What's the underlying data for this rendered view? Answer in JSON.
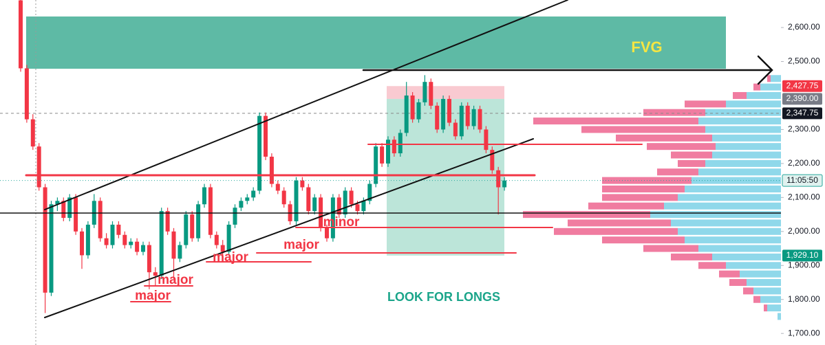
{
  "chart_data": {
    "type": "candlestick",
    "up_color": "#089981",
    "down_color": "#f23645",
    "open": [
      2680,
      2480,
      2330,
      2250,
      2130,
      1820,
      2080,
      2090,
      2040,
      2100,
      2000,
      1930,
      2020,
      2090,
      1980,
      1960,
      2020,
      1990,
      1960,
      1970,
      1940,
      1960,
      1880,
      1870,
      2060,
      2000,
      1920,
      1960,
      2050,
      1980,
      2080,
      2130,
      1990,
      1960,
      1940,
      2020,
      2070,
      2090,
      2100,
      2120,
      2340,
      2220,
      2140,
      2120,
      2080,
      2030,
      2150,
      2130,
      2060,
      2100,
      2010,
      1980,
      2100,
      2050,
      2120,
      2080,
      2060,
      2090,
      2140,
      2250,
      2200,
      2270,
      2230,
      2290,
      2400,
      2330,
      2380,
      2440,
      2370,
      2300,
      2390,
      2320,
      2280,
      2370,
      2310,
      2360,
      2300,
      2240,
      2180,
      2130
    ],
    "high": [
      2690,
      2490,
      2345,
      2260,
      2140,
      2090,
      2100,
      2100,
      2110,
      2110,
      2010,
      2030,
      2110,
      2100,
      1995,
      2030,
      2030,
      2000,
      1980,
      1980,
      1970,
      1970,
      1895,
      2070,
      2070,
      2010,
      1970,
      2060,
      2060,
      2090,
      2140,
      2140,
      2000,
      1975,
      2030,
      2080,
      2100,
      2110,
      2130,
      2350,
      2350,
      2230,
      2150,
      2130,
      2090,
      2160,
      2160,
      2140,
      2110,
      2110,
      2020,
      2110,
      2110,
      2130,
      2130,
      2090,
      2100,
      2150,
      2260,
      2260,
      2280,
      2280,
      2300,
      2440,
      2410,
      2390,
      2460,
      2450,
      2380,
      2400,
      2400,
      2330,
      2380,
      2380,
      2370,
      2370,
      2310,
      2250,
      2190,
      2160
    ],
    "low": [
      2470,
      2320,
      2240,
      2120,
      1760,
      1810,
      2060,
      2030,
      2030,
      1990,
      1890,
      1920,
      2010,
      1970,
      1950,
      1950,
      1980,
      1950,
      1950,
      1930,
      1930,
      1830,
      1840,
      1860,
      1990,
      1860,
      1910,
      1950,
      1970,
      1970,
      2070,
      1980,
      1950,
      1930,
      1930,
      2010,
      2060,
      2080,
      2090,
      2110,
      2210,
      2130,
      2110,
      2070,
      2020,
      2020,
      2120,
      2050,
      2050,
      2000,
      1970,
      1970,
      2040,
      2040,
      2070,
      2050,
      2050,
      2080,
      2130,
      2190,
      2190,
      2220,
      2220,
      2280,
      2320,
      2320,
      2370,
      2360,
      2290,
      2290,
      2310,
      2270,
      2270,
      2300,
      2300,
      2290,
      2230,
      2170,
      2050,
      2120
    ],
    "close": [
      2480,
      2330,
      2250,
      2130,
      1820,
      2080,
      2090,
      2040,
      2100,
      2000,
      1930,
      2020,
      2090,
      1980,
      1960,
      2020,
      1990,
      1960,
      1970,
      1940,
      1960,
      1880,
      1870,
      2060,
      2000,
      1920,
      1960,
      2050,
      1980,
      2080,
      2130,
      1990,
      1960,
      1940,
      2020,
      2070,
      2090,
      2100,
      2120,
      2340,
      2220,
      2140,
      2120,
      2080,
      2030,
      2150,
      2130,
      2060,
      2100,
      2010,
      1980,
      2100,
      2050,
      2120,
      2080,
      2060,
      2090,
      2140,
      2250,
      2200,
      2270,
      2230,
      2290,
      2400,
      2330,
      2380,
      2440,
      2370,
      2300,
      2390,
      2320,
      2280,
      2370,
      2310,
      2360,
      2300,
      2240,
      2180,
      2130,
      2150
    ],
    "ylim": [
      1666,
      2681
    ],
    "yticks": [
      {
        "value": 2600,
        "label": "2,600.00"
      },
      {
        "value": 2500,
        "label": "2,500.00"
      },
      {
        "value": 2300,
        "label": "2,300.00"
      },
      {
        "value": 2200,
        "label": "2,200.00"
      },
      {
        "value": 2100,
        "label": "2,100.00"
      },
      {
        "value": 2000,
        "label": "2,000.00"
      },
      {
        "value": 1900,
        "label": "1,900.00"
      },
      {
        "value": 1800,
        "label": "1,800.00"
      },
      {
        "value": 1700,
        "label": "1,700.00"
      }
    ],
    "price_tags": [
      {
        "value": 2427.75,
        "label": "2,427.75",
        "color": "#f23645"
      },
      {
        "value": 2390,
        "label": "2,390.00",
        "color": "#787b86"
      },
      {
        "value": 2347.75,
        "label": "2,347.75",
        "color": "#131722"
      },
      {
        "value": 1929.1,
        "label": "1,929.10",
        "color": "#089981"
      }
    ],
    "countdown": "11:05:50",
    "profile": {
      "prices": [
        1750,
        1775,
        1800,
        1825,
        1850,
        1875,
        1900,
        1925,
        1950,
        1975,
        2000,
        2025,
        2050,
        2075,
        2100,
        2125,
        2150,
        2175,
        2200,
        2225,
        2250,
        2275,
        2300,
        2325,
        2350,
        2375,
        2400,
        2425,
        2450
      ],
      "up": [
        5,
        20,
        30,
        40,
        50,
        60,
        80,
        100,
        120,
        140,
        150,
        160,
        190,
        170,
        150,
        140,
        130,
        120,
        110,
        100,
        95,
        100,
        110,
        120,
        110,
        80,
        50,
        30,
        15
      ],
      "down": [
        0,
        5,
        10,
        15,
        25,
        30,
        40,
        60,
        80,
        120,
        180,
        150,
        185,
        110,
        110,
        120,
        130,
        60,
        40,
        60,
        100,
        140,
        180,
        240,
        90,
        60,
        20,
        10,
        5
      ],
      "up_color": "#8fd8ea",
      "down_color": "#f07ca0"
    },
    "annotations": {
      "fvg": "FVG",
      "look": "LOOK FOR LONGS",
      "minor": "minor",
      "major": "major"
    }
  }
}
